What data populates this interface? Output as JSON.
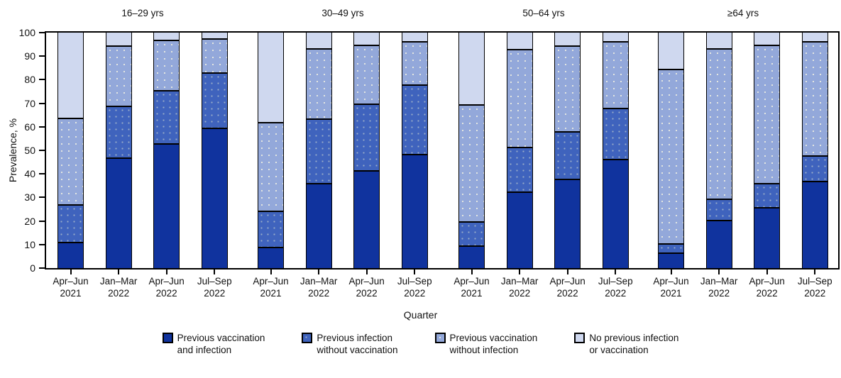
{
  "chart_data": {
    "type": "bar",
    "subtype": "stacked-100pct-grouped",
    "title": "",
    "xlabel": "Quarter",
    "ylabel": "Prevalence, %",
    "ylim": [
      0,
      100
    ],
    "yticks": [
      0,
      10,
      20,
      30,
      40,
      50,
      60,
      70,
      80,
      90,
      100
    ],
    "grid": false,
    "legend_position": "bottom-center",
    "series": [
      {
        "name": "Previous vaccination and infection",
        "name_line1": "Previous vaccination",
        "name_line2": "and infection",
        "color": "#10339e",
        "pattern": "solid"
      },
      {
        "name": "Previous infection without vaccination",
        "name_line1": "Previous infection",
        "name_line2": "without vaccination",
        "color": "#3f63bd",
        "pattern": "fine-dots"
      },
      {
        "name": "Previous vaccination without infection",
        "name_line1": "Previous vaccination",
        "name_line2": "without infection",
        "color": "#93a8da",
        "pattern": "dots"
      },
      {
        "name": "No previous infection or vaccination",
        "name_line1": "No previous infection",
        "name_line2": "or vaccination",
        "color": "#cfd8ef",
        "pattern": "solid"
      }
    ],
    "groups": [
      {
        "label": "16–29 yrs",
        "bars": [
          {
            "quarter": "Apr–Jun",
            "year": "2021",
            "values": [
              11,
              16,
              37,
              36
            ]
          },
          {
            "quarter": "Jan–Mar",
            "year": "2022",
            "values": [
              47,
              22,
              25.5,
              5.5
            ]
          },
          {
            "quarter": "Apr–Jun",
            "year": "2022",
            "values": [
              53,
              22.5,
              21.5,
              3
            ]
          },
          {
            "quarter": "Jul–Sep",
            "year": "2022",
            "values": [
              59.5,
              23.5,
              14.5,
              2.5
            ]
          }
        ]
      },
      {
        "label": "30–49 yrs",
        "bars": [
          {
            "quarter": "Apr–Jun",
            "year": "2021",
            "values": [
              9,
              15.5,
              37.5,
              38
            ]
          },
          {
            "quarter": "Jan–Mar",
            "year": "2022",
            "values": [
              36,
              27.5,
              30,
              6.5
            ]
          },
          {
            "quarter": "Apr–Jun",
            "year": "2022",
            "values": [
              41.5,
              28.5,
              25,
              5
            ]
          },
          {
            "quarter": "Jul–Sep",
            "year": "2022",
            "values": [
              48.5,
              29.5,
              18.5,
              3.5
            ]
          }
        ]
      },
      {
        "label": "50–64 yrs",
        "bars": [
          {
            "quarter": "Apr–Jun",
            "year": "2021",
            "values": [
              9.5,
              10.5,
              49.5,
              30.5
            ]
          },
          {
            "quarter": "Jan–Mar",
            "year": "2022",
            "values": [
              32.5,
              19,
              41.5,
              7
            ]
          },
          {
            "quarter": "Apr–Jun",
            "year": "2022",
            "values": [
              38,
              20,
              36.5,
              5.5
            ]
          },
          {
            "quarter": "Jul–Sep",
            "year": "2022",
            "values": [
              46.5,
              21.5,
              28.5,
              3.5
            ]
          }
        ]
      },
      {
        "label": "≥64 yrs",
        "bars": [
          {
            "quarter": "Apr–Jun",
            "year": "2021",
            "values": [
              6.5,
              4,
              74,
              15.5
            ]
          },
          {
            "quarter": "Jan–Mar",
            "year": "2022",
            "values": [
              20.5,
              9,
              64,
              6.5
            ]
          },
          {
            "quarter": "Apr–Jun",
            "year": "2022",
            "values": [
              26,
              10,
              59,
              5
            ]
          },
          {
            "quarter": "Jul–Sep",
            "year": "2022",
            "values": [
              37,
              11,
              48.5,
              3.5
            ]
          }
        ]
      }
    ]
  }
}
